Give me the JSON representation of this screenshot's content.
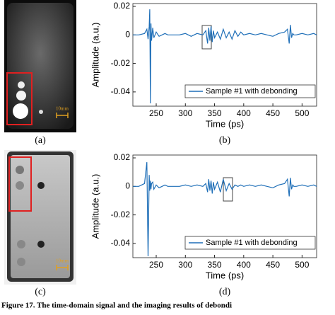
{
  "figure": {
    "panel_labels": [
      "(a)",
      "(b)",
      "(c)",
      "(d)"
    ],
    "scale_labels": [
      "10mm",
      "10mm"
    ],
    "caption": "Figure 17. The time-domain signal and the imaging results of debondi"
  },
  "chart_data": [
    {
      "type": "line",
      "xlabel": "Time (ps)",
      "ylabel": "Amplitude (a.u.)",
      "legend": "lower right",
      "xlim": [
        210,
        525
      ],
      "xticks": [
        250,
        300,
        350,
        400,
        450,
        500
      ],
      "ylim": [
        -0.05,
        0.022
      ],
      "yticks": [
        0.02,
        0,
        -0.02,
        -0.04
      ],
      "x": [
        210,
        220,
        230,
        234,
        236,
        238,
        239,
        240,
        241,
        242,
        244,
        246,
        250,
        255,
        260,
        265,
        270,
        280,
        290,
        300,
        310,
        320,
        330,
        335,
        338,
        340,
        342,
        344,
        346,
        348,
        350,
        355,
        360,
        365,
        370,
        375,
        380,
        385,
        390,
        395,
        400,
        410,
        420,
        430,
        440,
        450,
        460,
        470,
        475,
        478,
        480,
        482,
        484,
        486,
        490,
        500,
        510,
        520,
        525
      ],
      "series": [
        {
          "name": "Sample #1 with debonding",
          "color": "#1f6fb8",
          "values": [
            0,
            0,
            0.001,
            0.004,
            -0.003,
            0.006,
            0.018,
            -0.048,
            0.008,
            -0.004,
            0.005,
            -0.002,
            0.002,
            -0.001,
            0,
            0.001,
            0,
            0,
            0,
            0.001,
            -0.001,
            0.001,
            0,
            0.003,
            -0.006,
            0.005,
            -0.004,
            0.006,
            -0.005,
            0.003,
            -0.002,
            0.002,
            -0.003,
            0.004,
            -0.002,
            0.002,
            -0.003,
            0.003,
            -0.001,
            0.002,
            0,
            0.001,
            0,
            0.001,
            0,
            -0.001,
            0.001,
            0.002,
            0.004,
            -0.006,
            0.007,
            -0.002,
            0.001,
            0,
            0,
            0.001,
            0,
            0.001,
            0
          ]
        }
      ]
    },
    {
      "type": "line",
      "xlabel": "Time (ps)",
      "ylabel": "Amplitude (a.u.)",
      "legend": "lower right",
      "xlim": [
        210,
        525
      ],
      "xticks": [
        250,
        300,
        350,
        400,
        450,
        500
      ],
      "ylim": [
        -0.05,
        0.022
      ],
      "yticks": [
        0.02,
        0,
        -0.02,
        -0.04
      ],
      "x": [
        210,
        220,
        230,
        234,
        236,
        238,
        239,
        240,
        241,
        242,
        244,
        246,
        250,
        255,
        260,
        265,
        270,
        280,
        290,
        300,
        310,
        320,
        330,
        335,
        338,
        340,
        342,
        344,
        346,
        348,
        350,
        355,
        360,
        365,
        370,
        375,
        380,
        385,
        390,
        395,
        400,
        410,
        420,
        430,
        440,
        450,
        460,
        470,
        475,
        478,
        480,
        482,
        484,
        486,
        490,
        500,
        510,
        520,
        525
      ],
      "series": [
        {
          "name": "Sample #1 with debonding",
          "color": "#1f6fb8",
          "values": [
            0,
            0,
            0.002,
            0.017,
            -0.049,
            0.008,
            -0.003,
            0.004,
            -0.002,
            0.002,
            0.003,
            -0.002,
            0.001,
            -0.001,
            0,
            0.001,
            0,
            0,
            0,
            0.001,
            0,
            0.001,
            0,
            0.002,
            -0.004,
            0.005,
            -0.003,
            0.004,
            -0.005,
            0.003,
            -0.002,
            0.003,
            -0.004,
            0.005,
            -0.003,
            0.002,
            -0.002,
            0.001,
            0,
            0.001,
            0,
            0.001,
            0,
            0.001,
            0,
            -0.001,
            0.001,
            0.002,
            0.005,
            -0.007,
            0.006,
            -0.002,
            0.001,
            0,
            0,
            0.001,
            0,
            0.001,
            0
          ]
        }
      ]
    }
  ]
}
